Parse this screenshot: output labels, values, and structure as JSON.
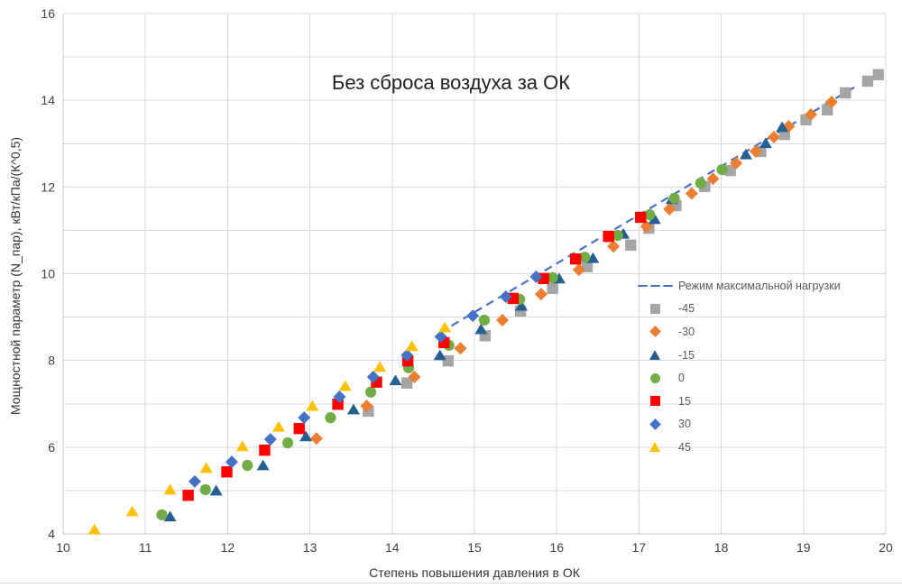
{
  "colors": {
    "grid": "#D9D9D9",
    "axis": "#BFBFBF",
    "tick_label": "#404040",
    "title_text": "#1F1F1F",
    "legend_text": "#595959"
  },
  "chart_data": {
    "type": "scatter",
    "title": "Без сброса воздуха за ОК",
    "xlabel": "Степень повышения давления в ОК",
    "ylabel": "Мощностной параметр (N_пар), кВт/кПа/(К^0,5)",
    "xlim": [
      10,
      20
    ],
    "ylim": [
      4,
      16
    ],
    "x_ticks": [
      10,
      11,
      12,
      13,
      14,
      15,
      16,
      17,
      18,
      19,
      20
    ],
    "y_ticks": [
      4,
      6,
      8,
      10,
      12,
      14,
      16
    ],
    "grid": "both axes, step 1, light gray",
    "legend_position": "middle-right, transparent, no border",
    "line_series": {
      "name": "Режим максимальной нагрузки",
      "color": "#4472C4",
      "style": "dashed",
      "points": [
        [
          14.58,
          8.64
        ],
        [
          19.62,
          14.3
        ]
      ]
    },
    "series": [
      {
        "name": "-45",
        "marker": "square",
        "color": "#A5A5A5",
        "points": [
          [
            13.71,
            6.83
          ],
          [
            14.18,
            7.48
          ],
          [
            14.68,
            7.99
          ],
          [
            15.13,
            8.57
          ],
          [
            15.56,
            9.14
          ],
          [
            15.95,
            9.66
          ],
          [
            16.37,
            10.16
          ],
          [
            16.9,
            10.66
          ],
          [
            17.12,
            11.05
          ],
          [
            17.45,
            11.57
          ],
          [
            17.8,
            12.01
          ],
          [
            18.11,
            12.38
          ],
          [
            18.48,
            12.82
          ],
          [
            18.77,
            13.21
          ],
          [
            19.03,
            13.55
          ],
          [
            19.29,
            13.78
          ],
          [
            19.51,
            14.17
          ],
          [
            19.78,
            14.44
          ],
          [
            19.91,
            14.59
          ]
        ]
      },
      {
        "name": "-30",
        "marker": "diamond",
        "color": "#ED7D31",
        "points": [
          [
            13.08,
            6.2
          ],
          [
            13.69,
            6.95
          ],
          [
            14.27,
            7.62
          ],
          [
            14.83,
            8.28
          ],
          [
            15.34,
            8.93
          ],
          [
            15.81,
            9.53
          ],
          [
            16.27,
            10.09
          ],
          [
            16.69,
            10.63
          ],
          [
            17.09,
            11.09
          ],
          [
            17.37,
            11.49
          ],
          [
            17.64,
            11.85
          ],
          [
            17.9,
            12.19
          ],
          [
            18.18,
            12.55
          ],
          [
            18.42,
            12.82
          ],
          [
            18.64,
            13.15
          ],
          [
            18.82,
            13.4
          ],
          [
            19.09,
            13.67
          ],
          [
            19.34,
            13.96
          ]
        ]
      },
      {
        "name": "-15",
        "marker": "triangle",
        "color": "#255E91",
        "points": [
          [
            11.3,
            4.4
          ],
          [
            11.86,
            5.0
          ],
          [
            12.43,
            5.58
          ],
          [
            12.95,
            6.25
          ],
          [
            13.53,
            6.87
          ],
          [
            14.04,
            7.54
          ],
          [
            14.58,
            8.12
          ],
          [
            15.08,
            8.72
          ],
          [
            15.57,
            9.26
          ],
          [
            16.03,
            9.89
          ],
          [
            16.44,
            10.36
          ],
          [
            16.81,
            10.92
          ],
          [
            17.19,
            11.26
          ],
          [
            17.4,
            11.72
          ],
          [
            18.3,
            12.75
          ],
          [
            18.54,
            13.01
          ],
          [
            18.74,
            13.38
          ]
        ]
      },
      {
        "name": "0",
        "marker": "circle",
        "color": "#70AD47",
        "points": [
          [
            11.2,
            4.44
          ],
          [
            11.73,
            5.02
          ],
          [
            12.24,
            5.58
          ],
          [
            12.73,
            6.1
          ],
          [
            13.25,
            6.68
          ],
          [
            13.74,
            7.27
          ],
          [
            14.2,
            7.83
          ],
          [
            14.69,
            8.35
          ],
          [
            15.12,
            8.93
          ],
          [
            15.55,
            9.41
          ],
          [
            15.95,
            9.91
          ],
          [
            16.34,
            10.38
          ],
          [
            16.74,
            10.88
          ],
          [
            17.13,
            11.36
          ],
          [
            17.43,
            11.74
          ],
          [
            17.75,
            12.09
          ],
          [
            18.01,
            12.4
          ]
        ]
      },
      {
        "name": "15",
        "marker": "square",
        "color": "#FF0000",
        "points": [
          [
            11.52,
            4.89
          ],
          [
            11.99,
            5.43
          ],
          [
            12.45,
            5.93
          ],
          [
            12.87,
            6.43
          ],
          [
            13.34,
            6.99
          ],
          [
            13.81,
            7.5
          ],
          [
            14.19,
            7.99
          ],
          [
            14.63,
            8.41
          ],
          [
            15.47,
            9.43
          ],
          [
            15.84,
            9.89
          ],
          [
            16.23,
            10.34
          ],
          [
            16.63,
            10.86
          ],
          [
            17.02,
            11.3
          ]
        ]
      },
      {
        "name": "30",
        "marker": "diamond",
        "color": "#4472C4",
        "points": [
          [
            11.6,
            5.21
          ],
          [
            12.05,
            5.66
          ],
          [
            12.52,
            6.18
          ],
          [
            12.93,
            6.68
          ],
          [
            13.36,
            7.16
          ],
          [
            13.77,
            7.62
          ],
          [
            14.18,
            8.12
          ],
          [
            14.59,
            8.55
          ],
          [
            14.98,
            9.03
          ],
          [
            15.38,
            9.47
          ],
          [
            15.75,
            9.93
          ]
        ]
      },
      {
        "name": "45",
        "marker": "triangle",
        "color": "#FFC000",
        "points": [
          [
            10.38,
            4.1
          ],
          [
            10.84,
            4.52
          ],
          [
            11.3,
            5.02
          ],
          [
            11.74,
            5.52
          ],
          [
            12.18,
            6.02
          ],
          [
            12.62,
            6.47
          ],
          [
            13.03,
            6.95
          ],
          [
            13.43,
            7.41
          ],
          [
            13.85,
            7.85
          ],
          [
            14.24,
            8.33
          ],
          [
            14.64,
            8.76
          ]
        ]
      }
    ]
  }
}
